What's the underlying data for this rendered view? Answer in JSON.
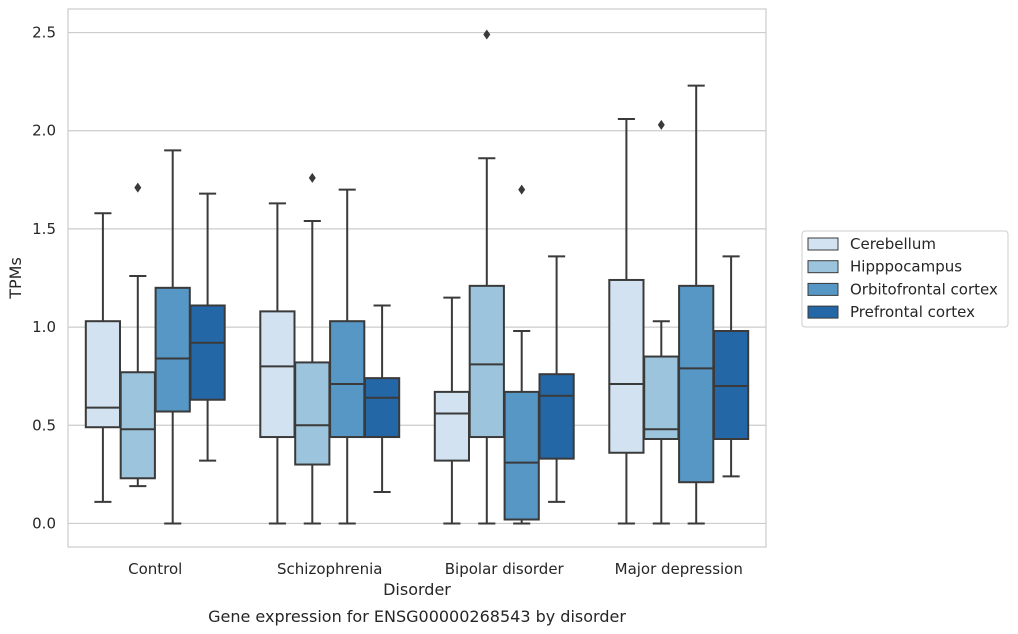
{
  "chart_data": {
    "type": "boxplot",
    "xlabel": "Disorder",
    "ylabel": "TPMs",
    "caption": "Gene expression for ENSG00000268543 by disorder",
    "ylim": [
      -0.12,
      2.62
    ],
    "yticks": [
      0.0,
      0.5,
      1.0,
      1.5,
      2.0,
      2.5
    ],
    "ytick_labels": [
      "0.0",
      "0.5",
      "1.0",
      "1.5",
      "2.0",
      "2.5"
    ],
    "grid": "horizontal",
    "legend_position": "right",
    "categories": [
      "Control",
      "Schizophrenia",
      "Bipolar disorder",
      "Major depression"
    ],
    "series": [
      {
        "name": "Cerebellum",
        "color": "#d2e2f1",
        "boxes": [
          {
            "min": 0.11,
            "q1": 0.49,
            "median": 0.59,
            "q3": 1.03,
            "max": 1.58,
            "outliers": []
          },
          {
            "min": 0.0,
            "q1": 0.44,
            "median": 0.8,
            "q3": 1.08,
            "max": 1.63,
            "outliers": []
          },
          {
            "min": 0.0,
            "q1": 0.32,
            "median": 0.56,
            "q3": 0.67,
            "max": 1.15,
            "outliers": []
          },
          {
            "min": 0.0,
            "q1": 0.36,
            "median": 0.71,
            "q3": 1.24,
            "max": 2.06,
            "outliers": []
          }
        ]
      },
      {
        "name": "Hipppocampus",
        "color": "#9cc4dd",
        "boxes": [
          {
            "min": 0.19,
            "q1": 0.23,
            "median": 0.48,
            "q3": 0.77,
            "max": 1.26,
            "outliers": [
              1.71
            ]
          },
          {
            "min": 0.0,
            "q1": 0.3,
            "median": 0.5,
            "q3": 0.82,
            "max": 1.54,
            "outliers": [
              1.76
            ]
          },
          {
            "min": 0.0,
            "q1": 0.44,
            "median": 0.81,
            "q3": 1.21,
            "max": 1.86,
            "outliers": [
              2.49
            ]
          },
          {
            "min": 0.0,
            "q1": 0.43,
            "median": 0.48,
            "q3": 0.85,
            "max": 1.03,
            "outliers": [
              2.03
            ]
          }
        ]
      },
      {
        "name": "Orbitofrontal cortex",
        "color": "#5697c6",
        "boxes": [
          {
            "min": 0.0,
            "q1": 0.57,
            "median": 0.84,
            "q3": 1.2,
            "max": 1.9,
            "outliers": []
          },
          {
            "min": 0.0,
            "q1": 0.44,
            "median": 0.71,
            "q3": 1.03,
            "max": 1.7,
            "outliers": []
          },
          {
            "min": 0.0,
            "q1": 0.02,
            "median": 0.31,
            "q3": 0.67,
            "max": 0.98,
            "outliers": [
              1.7
            ]
          },
          {
            "min": 0.0,
            "q1": 0.21,
            "median": 0.79,
            "q3": 1.21,
            "max": 2.23,
            "outliers": []
          }
        ]
      },
      {
        "name": "Prefrontal cortex",
        "color": "#2467a7",
        "boxes": [
          {
            "min": 0.32,
            "q1": 0.63,
            "median": 0.92,
            "q3": 1.11,
            "max": 1.68,
            "outliers": []
          },
          {
            "min": 0.16,
            "q1": 0.44,
            "median": 0.64,
            "q3": 0.74,
            "max": 1.11,
            "outliers": []
          },
          {
            "min": 0.11,
            "q1": 0.33,
            "median": 0.65,
            "q3": 0.76,
            "max": 1.36,
            "outliers": []
          },
          {
            "min": 0.24,
            "q1": 0.43,
            "median": 0.7,
            "q3": 0.98,
            "max": 1.36,
            "outliers": []
          }
        ]
      }
    ]
  }
}
